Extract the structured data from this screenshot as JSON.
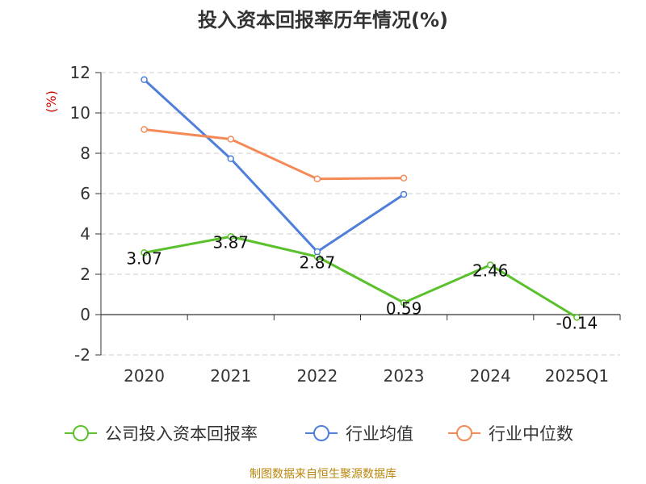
{
  "chart_data": {
    "type": "line",
    "title": "投入资本回报率历年情况(%)",
    "ylabel": "(%)",
    "categories": [
      "2020",
      "2021",
      "2022",
      "2023",
      "2024",
      "2025Q1"
    ],
    "ylim": [
      -2,
      12
    ],
    "yticks": [
      -2,
      0,
      2,
      4,
      6,
      8,
      10,
      12
    ],
    "grid": true,
    "legend_position": "bottom",
    "series": [
      {
        "name": "公司投入资本回报率",
        "color": "#5ac12c",
        "values": [
          3.07,
          3.87,
          2.87,
          0.59,
          2.46,
          -0.14
        ],
        "labels": [
          "3.07",
          "3.87",
          "2.87",
          "0.59",
          "2.46",
          "-0.14"
        ]
      },
      {
        "name": "行业均值",
        "color": "#4f7fdb",
        "values": [
          11.65,
          7.73,
          3.12,
          5.96,
          null,
          null
        ]
      },
      {
        "name": "行业中位数",
        "color": "#f48a57",
        "values": [
          9.18,
          8.7,
          6.73,
          6.77,
          null,
          null
        ]
      }
    ]
  },
  "source": "制图数据来自恒生聚源数据库"
}
